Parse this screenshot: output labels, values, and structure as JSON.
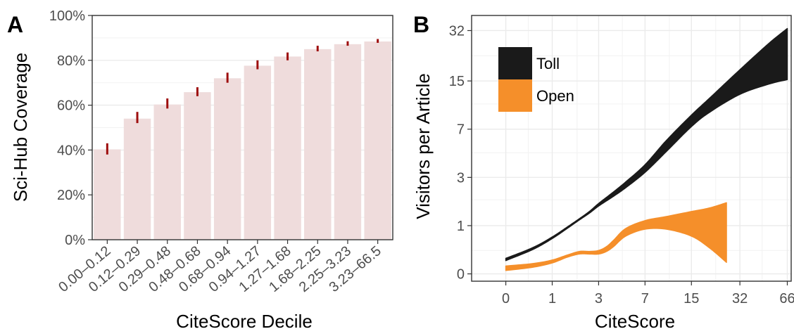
{
  "chart_data": [
    {
      "panel": "A",
      "type": "bar",
      "xlabel": "CiteScore Decile",
      "ylabel": "Sci-Hub Coverage",
      "categories": [
        "0.00–0.12",
        "0.12–0.29",
        "0.29–0.48",
        "0.48–0.68",
        "0.68–0.94",
        "0.94–1.27",
        "1.27–1.68",
        "1.68–2.25",
        "2.25–3.23",
        "3.23–66.5"
      ],
      "values": [
        0.403,
        0.54,
        0.603,
        0.658,
        0.72,
        0.776,
        0.817,
        0.85,
        0.872,
        0.884
      ],
      "error_low": [
        0.38,
        0.52,
        0.585,
        0.64,
        0.7,
        0.76,
        0.8,
        0.84,
        0.865,
        0.878
      ],
      "error_high": [
        0.43,
        0.57,
        0.63,
        0.68,
        0.745,
        0.8,
        0.835,
        0.865,
        0.885,
        0.895
      ],
      "ylim": [
        0,
        1
      ],
      "yticks": [
        0,
        0.2,
        0.4,
        0.6,
        0.8,
        1.0
      ],
      "ytick_labels": [
        "0%",
        "20%",
        "40%",
        "60%",
        "80%",
        "100%"
      ],
      "bar_color": "#efdcdc",
      "error_color": "#9e0e0e",
      "grid": true
    },
    {
      "panel": "B",
      "type": "area",
      "xlabel": "CiteScore",
      "ylabel": "Visitors per Article",
      "xticks": [
        0,
        1,
        3,
        7,
        15,
        32,
        66
      ],
      "yticks": [
        0,
        1,
        3,
        7,
        15,
        32
      ],
      "xlim": [
        -0.4,
        70
      ],
      "ylim": [
        -0.1,
        40
      ],
      "scale": "sqrt-like (log1p) on both axes",
      "legend": "top-left",
      "grid": true,
      "series": [
        {
          "name": "Toll",
          "color": "#1a1a1a",
          "x": [
            0,
            0.5,
            1,
            1.5,
            2,
            2.5,
            3,
            4,
            5,
            7,
            10,
            15,
            20,
            32,
            50,
            66
          ],
          "lower": [
            0.21,
            0.42,
            0.66,
            0.92,
            1.17,
            1.4,
            1.65,
            2.05,
            2.45,
            3.3,
            4.8,
            7.3,
            9.2,
            12.2,
            14.3,
            15.3
          ],
          "upper": [
            0.25,
            0.46,
            0.7,
            0.96,
            1.21,
            1.46,
            1.75,
            2.25,
            2.75,
            3.8,
            5.8,
            8.8,
            11.5,
            17.8,
            26.5,
            33.0
          ]
        },
        {
          "name": "Open",
          "color": "#f58f2a",
          "x": [
            0,
            0.5,
            1,
            1.5,
            2,
            2.5,
            3,
            3.5,
            4,
            5,
            7,
            10,
            15,
            20,
            26
          ],
          "lower": [
            0.05,
            0.1,
            0.17,
            0.27,
            0.33,
            0.33,
            0.33,
            0.38,
            0.48,
            0.72,
            0.9,
            0.9,
            0.72,
            0.45,
            0.18
          ],
          "upper": [
            0.12,
            0.16,
            0.22,
            0.31,
            0.38,
            0.38,
            0.4,
            0.48,
            0.62,
            0.92,
            1.15,
            1.28,
            1.45,
            1.58,
            1.78
          ]
        }
      ]
    }
  ],
  "panel_labels": {
    "a": "A",
    "b": "B"
  }
}
